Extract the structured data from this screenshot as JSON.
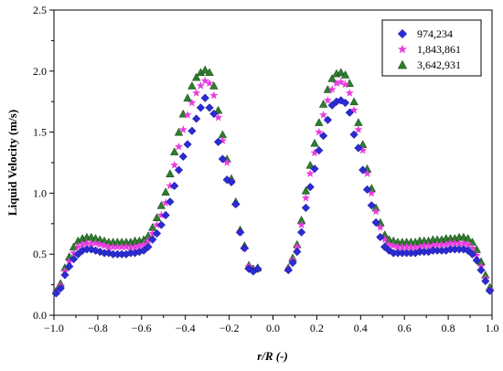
{
  "chart_data": {
    "type": "scatter",
    "title": "",
    "xlabel": "r/R (-)",
    "ylabel": "Liquid Velocity (m/s)",
    "xlim": [
      -1.0,
      1.0
    ],
    "ylim": [
      0.0,
      2.5
    ],
    "xticks": [
      "−1.0",
      "−0.8",
      "−0.6",
      "−0.4",
      "−0.2",
      "0.0",
      "0.2",
      "0.4",
      "0.6",
      "0.8",
      "1.0"
    ],
    "yticks": [
      "0.0",
      "0.5",
      "1.0",
      "1.5",
      "2.0",
      "2.5"
    ],
    "grid": false,
    "legend_position": "top-right",
    "x": [
      -0.99,
      -0.97,
      -0.95,
      -0.93,
      -0.91,
      -0.89,
      -0.87,
      -0.85,
      -0.83,
      -0.81,
      -0.79,
      -0.77,
      -0.75,
      -0.73,
      -0.71,
      -0.69,
      -0.67,
      -0.65,
      -0.63,
      -0.61,
      -0.59,
      -0.57,
      -0.55,
      -0.53,
      -0.51,
      -0.49,
      -0.47,
      -0.45,
      -0.43,
      -0.41,
      -0.39,
      -0.37,
      -0.35,
      -0.33,
      -0.31,
      -0.29,
      -0.27,
      -0.25,
      -0.23,
      -0.21,
      -0.19,
      -0.17,
      -0.15,
      -0.13,
      -0.11,
      -0.09,
      -0.07,
      0.07,
      0.09,
      0.11,
      0.13,
      0.15,
      0.17,
      0.19,
      0.21,
      0.23,
      0.25,
      0.27,
      0.29,
      0.31,
      0.33,
      0.35,
      0.37,
      0.39,
      0.41,
      0.43,
      0.45,
      0.47,
      0.49,
      0.51,
      0.53,
      0.55,
      0.57,
      0.59,
      0.61,
      0.63,
      0.65,
      0.67,
      0.69,
      0.71,
      0.73,
      0.75,
      0.77,
      0.79,
      0.81,
      0.83,
      0.85,
      0.87,
      0.89,
      0.91,
      0.93,
      0.95,
      0.97,
      0.99
    ],
    "series": [
      {
        "name": "974,234",
        "color": "#2b2bd6",
        "marker": "diamond",
        "values": [
          0.18,
          0.22,
          0.33,
          0.4,
          0.46,
          0.5,
          0.53,
          0.54,
          0.54,
          0.53,
          0.52,
          0.51,
          0.51,
          0.5,
          0.5,
          0.5,
          0.5,
          0.51,
          0.51,
          0.52,
          0.53,
          0.56,
          0.62,
          0.67,
          0.74,
          0.82,
          0.93,
          1.06,
          1.19,
          1.3,
          1.4,
          1.51,
          1.61,
          1.7,
          1.78,
          1.7,
          1.65,
          1.42,
          1.28,
          1.11,
          1.09,
          0.91,
          0.68,
          0.55,
          0.38,
          0.36,
          0.38,
          0.37,
          0.43,
          0.52,
          0.68,
          0.88,
          1.05,
          1.2,
          1.35,
          1.47,
          1.6,
          1.72,
          1.75,
          1.76,
          1.74,
          1.66,
          1.48,
          1.37,
          1.19,
          1.03,
          0.9,
          0.76,
          0.64,
          0.56,
          0.53,
          0.51,
          0.51,
          0.51,
          0.51,
          0.51,
          0.51,
          0.52,
          0.52,
          0.52,
          0.53,
          0.53,
          0.53,
          0.53,
          0.54,
          0.54,
          0.54,
          0.54,
          0.53,
          0.5,
          0.45,
          0.37,
          0.28,
          0.2
        ]
      },
      {
        "name": "1,843,861",
        "color": "#e83de0",
        "marker": "star",
        "values": [
          0.19,
          0.24,
          0.36,
          0.44,
          0.51,
          0.56,
          0.58,
          0.59,
          0.59,
          0.59,
          0.58,
          0.57,
          0.56,
          0.56,
          0.56,
          0.56,
          0.56,
          0.56,
          0.56,
          0.57,
          0.58,
          0.61,
          0.67,
          0.74,
          0.82,
          0.92,
          1.06,
          1.23,
          1.38,
          1.52,
          1.64,
          1.74,
          1.82,
          1.88,
          1.92,
          1.9,
          1.8,
          1.62,
          1.43,
          1.25,
          1.1,
          0.91,
          0.68,
          0.55,
          0.4,
          0.37,
          0.38,
          0.38,
          0.45,
          0.56,
          0.74,
          0.96,
          1.16,
          1.33,
          1.5,
          1.64,
          1.76,
          1.85,
          1.9,
          1.91,
          1.89,
          1.82,
          1.68,
          1.52,
          1.35,
          1.16,
          1.0,
          0.85,
          0.72,
          0.62,
          0.58,
          0.57,
          0.56,
          0.56,
          0.56,
          0.56,
          0.56,
          0.56,
          0.57,
          0.57,
          0.57,
          0.58,
          0.58,
          0.58,
          0.59,
          0.59,
          0.59,
          0.59,
          0.58,
          0.55,
          0.49,
          0.4,
          0.3,
          0.21
        ]
      },
      {
        "name": "3,642,931",
        "color": "#2d7d2d",
        "marker": "triangle",
        "values": [
          0.2,
          0.26,
          0.39,
          0.48,
          0.56,
          0.61,
          0.63,
          0.64,
          0.64,
          0.63,
          0.62,
          0.61,
          0.6,
          0.6,
          0.6,
          0.6,
          0.6,
          0.6,
          0.61,
          0.61,
          0.62,
          0.65,
          0.72,
          0.8,
          0.9,
          1.01,
          1.16,
          1.34,
          1.5,
          1.65,
          1.78,
          1.88,
          1.95,
          1.99,
          2.01,
          1.99,
          1.88,
          1.68,
          1.48,
          1.28,
          1.12,
          0.93,
          0.7,
          0.57,
          0.41,
          0.38,
          0.39,
          0.39,
          0.47,
          0.58,
          0.78,
          1.02,
          1.23,
          1.41,
          1.58,
          1.73,
          1.85,
          1.94,
          1.98,
          1.99,
          1.97,
          1.9,
          1.75,
          1.58,
          1.4,
          1.2,
          1.04,
          0.88,
          0.76,
          0.66,
          0.62,
          0.61,
          0.6,
          0.6,
          0.6,
          0.6,
          0.6,
          0.61,
          0.61,
          0.61,
          0.62,
          0.62,
          0.62,
          0.63,
          0.63,
          0.63,
          0.64,
          0.64,
          0.63,
          0.6,
          0.54,
          0.44,
          0.33,
          0.23
        ]
      }
    ]
  }
}
